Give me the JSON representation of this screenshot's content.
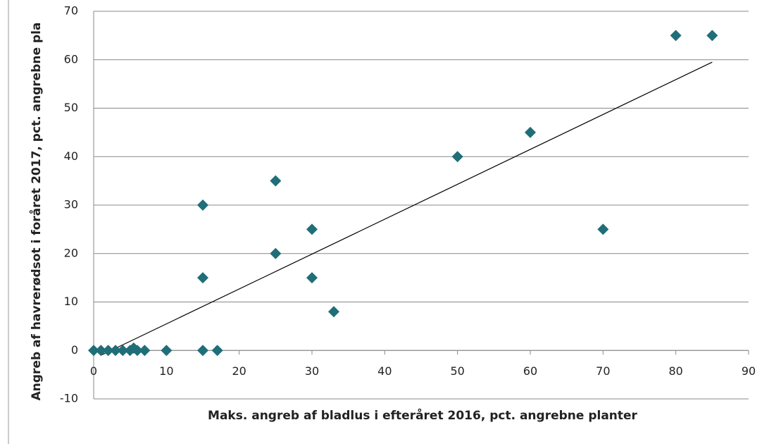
{
  "chart_data": {
    "type": "scatter",
    "x_label": "Maks. angreb af bladlus i efteråret 2016, pct. angrebne planter",
    "y_label": "Angreb af havrerødsot i foråret 2017, pct. angrebne pla",
    "x": [
      0,
      1,
      2,
      3,
      4,
      5,
      5.5,
      6,
      7,
      10,
      15,
      17,
      15,
      15,
      25,
      25,
      30,
      30,
      33,
      50,
      60,
      70,
      80,
      85
    ],
    "series": [
      {
        "color": "#1f6e78",
        "values": [
          0,
          0,
          0,
          0,
          0,
          0,
          0.5,
          0,
          0,
          0,
          0,
          0,
          15,
          30,
          20,
          35,
          25,
          15,
          8,
          40,
          45,
          25,
          65,
          65
        ]
      }
    ],
    "trendline": {
      "x": [
        1,
        85
      ],
      "y": [
        -1,
        59.5
      ]
    },
    "xlim": [
      0,
      90
    ],
    "xticks": [
      0,
      10,
      20,
      30,
      40,
      50,
      60,
      70,
      80,
      90
    ],
    "ylim": [
      -10,
      70
    ],
    "yticks": [
      -10,
      0,
      10,
      20,
      30,
      40,
      50,
      60,
      70
    ],
    "grid": true
  }
}
